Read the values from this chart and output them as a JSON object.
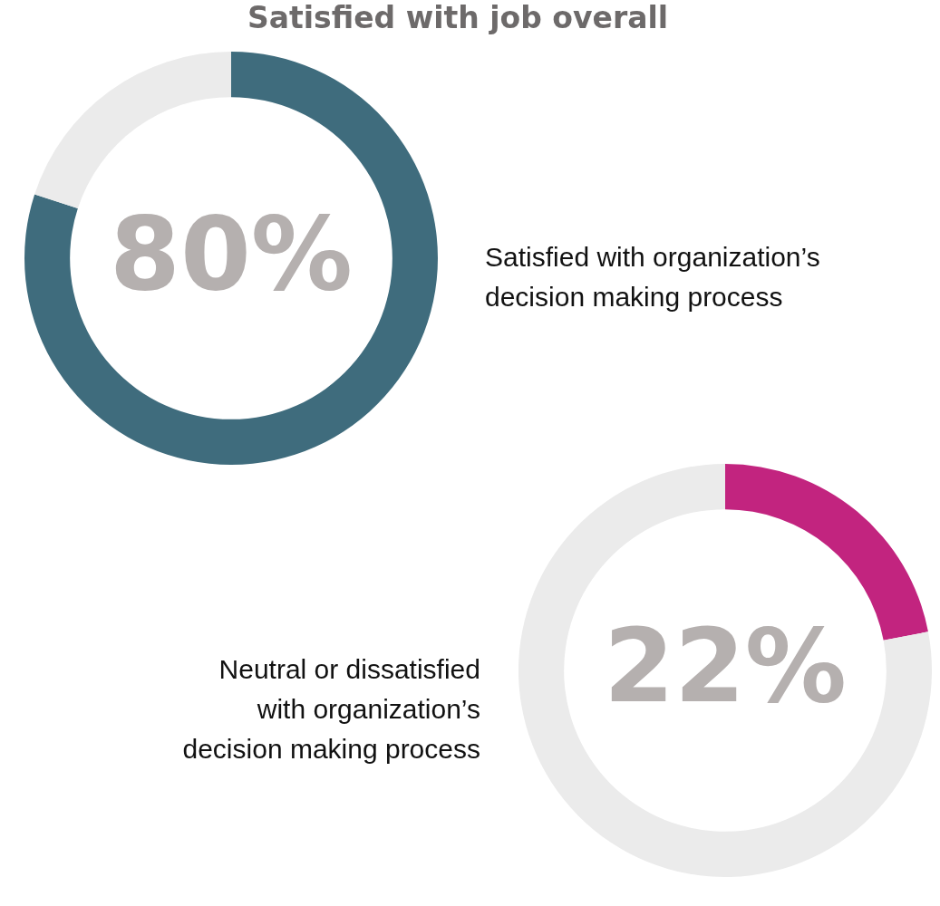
{
  "chart_data": [
    {
      "type": "donut",
      "title": "Satisfied with job overall",
      "categories": [
        "Satisfied with organization’s decision making process",
        null
      ],
      "values": [
        80,
        20
      ],
      "colors": [
        "#3f6c7d",
        "#ebebeb"
      ],
      "value_labels": [
        "80%",
        null
      ]
    },
    {
      "type": "donut",
      "categories": [
        null,
        null
      ],
      "values": [
        22,
        78
      ],
      "colors": [
        "#c2247f",
        "#ebebeb"
      ],
      "value_labels": [
        "22%",
        null
      ],
      "annotations": [
        "Neutral or dissatisfied with organization’s decision making process"
      ]
    }
  ]
}
